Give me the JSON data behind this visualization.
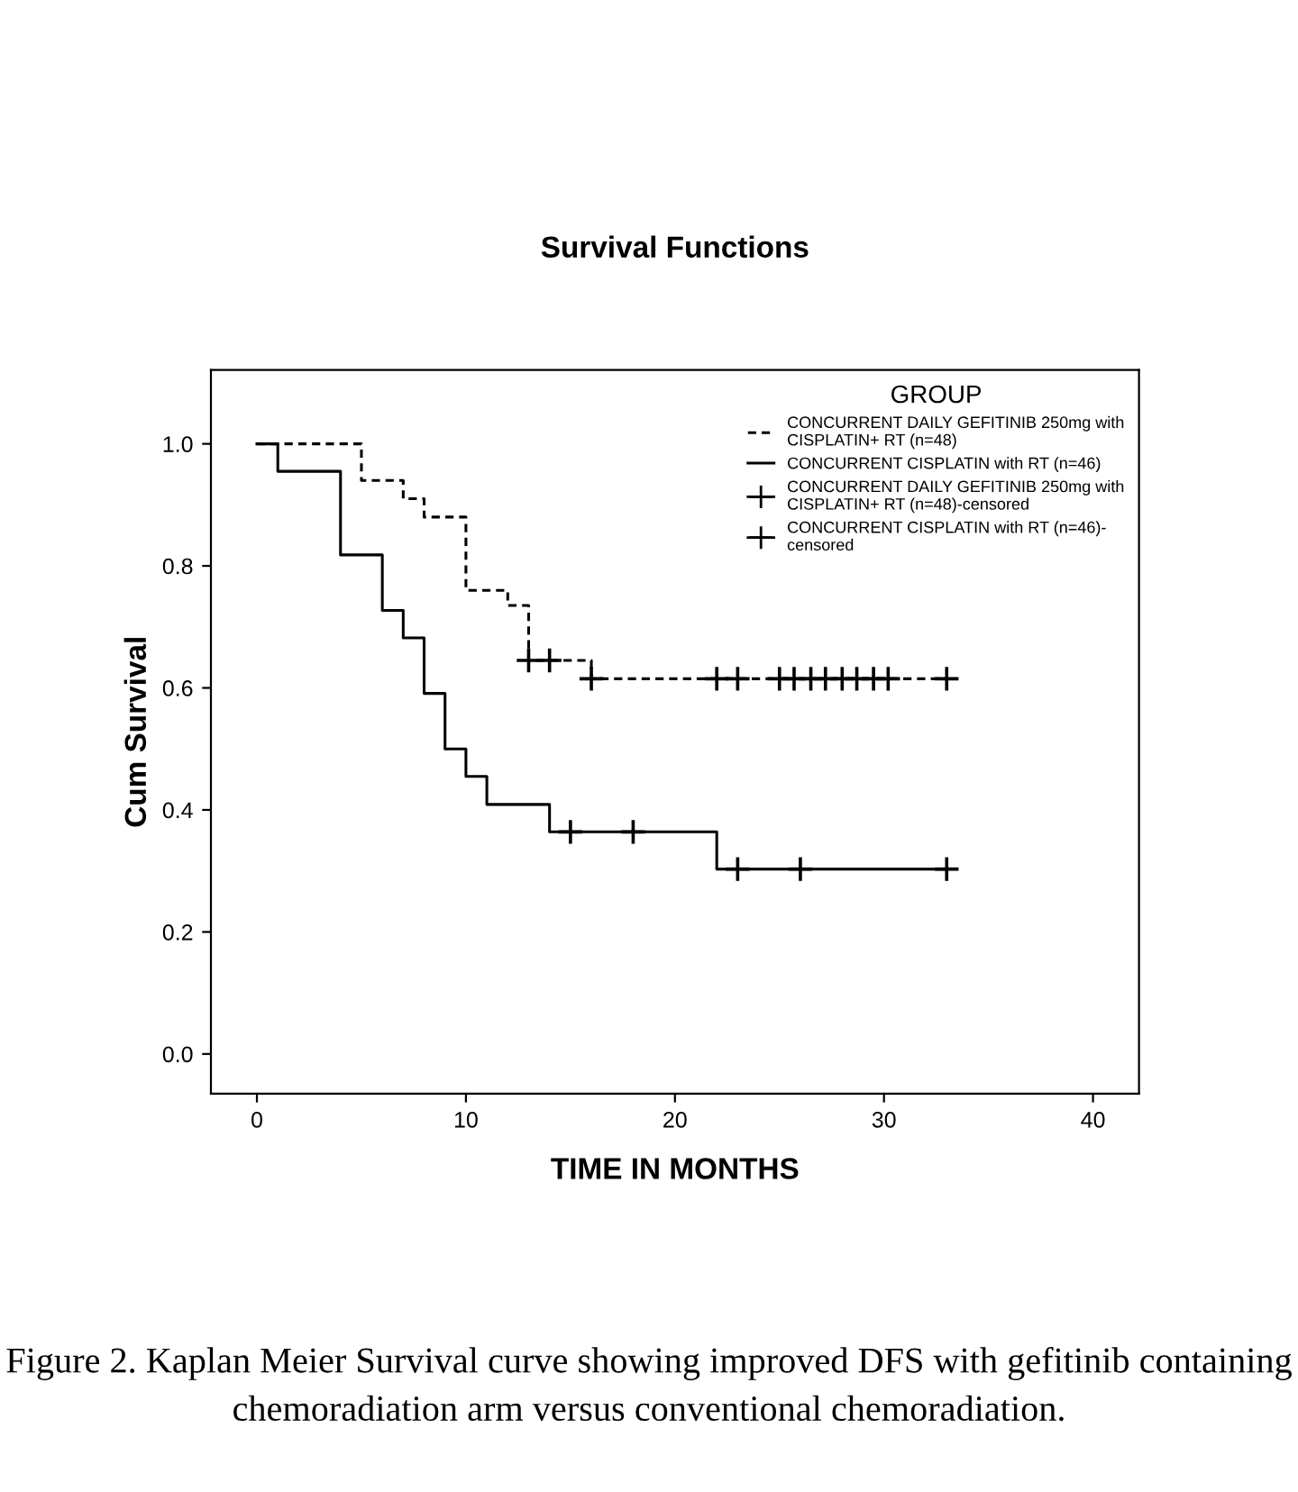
{
  "chart_data": {
    "type": "step",
    "title": "Survival Functions",
    "xlabel": "TIME IN MONTHS",
    "ylabel": "Cum Survival",
    "legend_title": "GROUP",
    "series": [
      {
        "name": "CONCURRENT DAILY GEFITINIB 250mg with\nCISPLATIN+ RT (n=48)",
        "color": "#000000",
        "line_style": "dashed",
        "x": [
          0,
          5,
          7,
          8,
          10,
          12,
          13,
          16,
          33
        ],
        "values": [
          1.0,
          0.94,
          0.91,
          0.88,
          0.76,
          0.735,
          0.645,
          0.615,
          0.615
        ]
      },
      {
        "name": "CONCURRENT CISPLATIN with RT (n=46)",
        "color": "#000000",
        "line_style": "solid",
        "x": [
          0,
          1,
          4,
          6,
          7,
          8,
          9,
          10,
          11,
          14,
          22,
          33
        ],
        "values": [
          1.0,
          0.955,
          0.818,
          0.727,
          0.682,
          0.591,
          0.5,
          0.455,
          0.409,
          0.364,
          0.303,
          0.303
        ]
      },
      {
        "name": "CONCURRENT DAILY GEFITINIB 250mg with\nCISPLATIN+ RT (n=48)-censored",
        "type": "scatter",
        "marker": "cross",
        "color": "#000000",
        "x": [
          13,
          14,
          16,
          22,
          23,
          25,
          25.7,
          26.5,
          27.2,
          28,
          28.7,
          29.5,
          30.2,
          33
        ],
        "values": [
          0.645,
          0.645,
          0.615,
          0.615,
          0.615,
          0.615,
          0.615,
          0.615,
          0.615,
          0.615,
          0.615,
          0.615,
          0.615,
          0.615
        ]
      },
      {
        "name": "CONCURRENT CISPLATIN with RT (n=46)-\ncensored",
        "type": "scatter",
        "marker": "cross",
        "color": "#000000",
        "x": [
          15,
          18,
          23,
          26,
          33
        ],
        "values": [
          0.364,
          0.364,
          0.303,
          0.303,
          0.303
        ]
      }
    ],
    "xlim": [
      -2.2,
      42.2
    ],
    "ylim": [
      -0.065,
      1.121
    ],
    "xticks": [
      0,
      10,
      20,
      30,
      40
    ],
    "yticks": [
      {
        "value": 0,
        "label": "0.0"
      },
      {
        "value": 0.2,
        "label": "0.2"
      },
      {
        "value": 0.4,
        "label": "0.4"
      },
      {
        "value": 0.6,
        "label": "0.6"
      },
      {
        "value": 0.8,
        "label": "0.8"
      },
      {
        "value": 1.0,
        "label": "1.0"
      }
    ],
    "grid": false,
    "legend": "top right",
    "annotations": [
      "Figure 2. Kaplan Meier Survival curve showing improved DFS with gefitinib containing chemoradiation arm versus conventional chemoradiation."
    ]
  }
}
